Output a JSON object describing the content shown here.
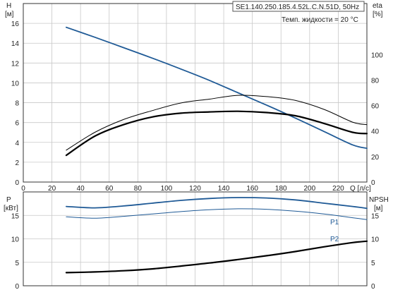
{
  "chart_data": [
    {
      "type": "line",
      "title": "SE1.140.250.185.4.52L.C.N.51D, 50Hz",
      "subtitle": "Темп. жидкости = 20 °C",
      "xlabel": "Q [л/с]",
      "ylabel_left": "H",
      "ylabel_left_unit": "[м]",
      "ylabel_right": "eta",
      "ylabel_right_unit": "[%]",
      "xlim": [
        0,
        240
      ],
      "ylim_left": [
        0,
        18
      ],
      "ylim_right": [
        0,
        140
      ],
      "x_ticks": [
        "0",
        "20",
        "40",
        "60",
        "80",
        "100",
        "120",
        "140",
        "160",
        "180",
        "200",
        "220"
      ],
      "y_ticks_left": [
        "0",
        "2",
        "4",
        "6",
        "8",
        "10",
        "12",
        "14",
        "16"
      ],
      "y_ticks_right": [
        "0",
        "20",
        "40",
        "60",
        "80",
        "100"
      ],
      "grid": true,
      "series": [
        {
          "axis": "left",
          "color": "#1f5a96",
          "x": [
            30,
            50,
            70,
            90,
            110,
            130,
            150,
            170,
            190,
            210,
            230,
            240
          ],
          "values": [
            15.6,
            14.6,
            13.55,
            12.5,
            11.4,
            10.25,
            9.0,
            7.75,
            6.45,
            5.1,
            3.75,
            3.4
          ]
        },
        {
          "axis": "right",
          "color": "#000000",
          "x": [
            30,
            50,
            70,
            90,
            110,
            130,
            150,
            170,
            190,
            210,
            230,
            240
          ],
          "values": [
            25,
            39,
            49,
            56,
            62,
            65,
            68,
            67,
            64,
            57,
            47,
            45
          ]
        },
        {
          "axis": "right",
          "color": "#000000",
          "x": [
            30,
            50,
            70,
            90,
            110,
            130,
            150,
            170,
            190,
            210,
            230,
            240
          ],
          "values": [
            21,
            36,
            45,
            51,
            54,
            55,
            55.5,
            54.5,
            52,
            46,
            39,
            38
          ]
        }
      ]
    },
    {
      "type": "line",
      "ylabel_left": "P",
      "ylabel_left_unit": "[кВт]",
      "ylabel_right": "NPSH",
      "ylabel_right_unit": "[м]",
      "xlim": [
        0,
        240
      ],
      "ylim": [
        0,
        20
      ],
      "y_ticks_left": [
        "0",
        "5",
        "10",
        "15"
      ],
      "y_ticks_right": [
        "0",
        "5",
        "10",
        "15"
      ],
      "grid": true,
      "series": [
        {
          "name": "P1",
          "color": "#1f5a96",
          "x": [
            30,
            50,
            70,
            90,
            110,
            130,
            150,
            170,
            190,
            210,
            230,
            240
          ],
          "values": [
            16.9,
            16.6,
            17.0,
            17.6,
            18.2,
            18.6,
            18.8,
            18.7,
            18.3,
            17.6,
            16.9,
            16.5
          ]
        },
        {
          "name": "P2",
          "color": "#1f5a96",
          "x": [
            30,
            50,
            70,
            90,
            110,
            130,
            150,
            170,
            190,
            210,
            230,
            240
          ],
          "values": [
            14.7,
            14.4,
            14.8,
            15.3,
            15.8,
            16.2,
            16.4,
            16.3,
            15.9,
            15.3,
            14.5,
            14.1
          ]
        },
        {
          "color": "#000000",
          "x": [
            30,
            50,
            70,
            90,
            110,
            130,
            150,
            170,
            190,
            210,
            230,
            240
          ],
          "values": [
            2.8,
            2.95,
            3.2,
            3.6,
            4.2,
            4.85,
            5.6,
            6.4,
            7.3,
            8.3,
            9.2,
            9.5
          ]
        }
      ]
    }
  ]
}
